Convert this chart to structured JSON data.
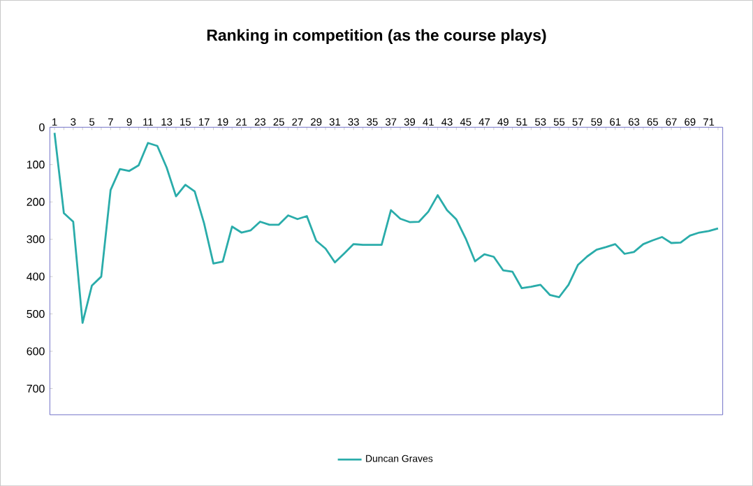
{
  "chart_data": {
    "type": "line",
    "title": "Ranking in competition (as the course plays)",
    "categories": [
      "1",
      null,
      "3",
      null,
      "5",
      null,
      "7",
      null,
      "9",
      null,
      "11",
      null,
      "13",
      null,
      "15",
      null,
      "17",
      null,
      "19",
      null,
      "21",
      null,
      "23",
      null,
      "25",
      null,
      "27",
      null,
      "29",
      null,
      "31",
      null,
      "33",
      null,
      "35",
      null,
      "37",
      null,
      "39",
      null,
      "41",
      null,
      "43",
      null,
      "45",
      null,
      "47",
      null,
      "49",
      null,
      "51",
      null,
      "53",
      null,
      "55",
      null,
      "57",
      null,
      "59",
      null,
      "61",
      null,
      "63",
      null,
      "65",
      null,
      "67",
      null,
      "69",
      null,
      "71",
      null
    ],
    "series": [
      {
        "name": "Duncan Graves",
        "color": "#2aacaa",
        "values": [
          15,
          230,
          253,
          524,
          424,
          400,
          168,
          112,
          117,
          102,
          42,
          50,
          108,
          185,
          154,
          172,
          257,
          365,
          360,
          266,
          282,
          276,
          253,
          261,
          261,
          236,
          246,
          238,
          304,
          325,
          362,
          338,
          313,
          315,
          315,
          315,
          222,
          245,
          254,
          253,
          226,
          182,
          222,
          247,
          298,
          359,
          340,
          347,
          383,
          387,
          431,
          427,
          422,
          449,
          455,
          422,
          369,
          346,
          328,
          321,
          313,
          339,
          334,
          313,
          303,
          294,
          310,
          309,
          290,
          282,
          278,
          271
        ]
      }
    ],
    "ylim": [
      770,
      0
    ],
    "yticks": [
      0,
      100,
      200,
      300,
      400,
      500,
      600,
      700
    ],
    "grid": false,
    "legend": "bottom",
    "marker": "none",
    "line_style": "solid"
  }
}
